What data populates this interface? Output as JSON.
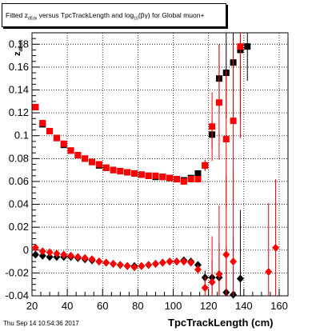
{
  "header": {
    "title_pre": "Fitted  z",
    "title_sub": "dEdx",
    "title_mid": " versus TpcTrackLength and log",
    "title_sub2": "10",
    "title_post": "(βγ) for Global muon+"
  },
  "footer": {
    "timestamp": "Thu Sep 14 10:54:36 2017"
  },
  "chart_data": {
    "type": "scatter",
    "xlabel": "TpcTrackLength (cm)",
    "ylabel_main": "z",
    "ylabel_sub": "dEdx",
    "xlim": [
      20,
      165
    ],
    "ylim": [
      -0.04,
      0.19
    ],
    "xticks": [
      20,
      40,
      60,
      80,
      100,
      120,
      140,
      160
    ],
    "yticks": [
      -0.04,
      -0.02,
      0,
      0.02,
      0.04,
      0.06,
      0.08,
      0.1,
      0.12,
      0.14,
      0.16,
      0.18
    ],
    "ytick_labels": [
      "-0.04",
      "-0.02",
      "0",
      "0.02",
      "0.04",
      "0.06",
      "0.08",
      "0.1",
      "0.12",
      "0.14",
      "0.16",
      "0.18"
    ],
    "grid": true,
    "colors": {
      "series1": "#000000",
      "series2": "#ff0000"
    },
    "series": [
      {
        "marker": "square",
        "color": "#000000",
        "x": [
          22,
          26,
          30,
          34,
          38,
          42,
          46,
          50,
          54,
          58,
          62,
          66,
          70,
          74,
          78,
          82,
          86,
          90,
          94,
          98,
          102,
          106,
          110,
          114,
          118,
          122,
          126,
          130,
          134,
          138,
          142
        ],
        "y": [
          0.125,
          0.11,
          0.104,
          0.098,
          0.092,
          0.087,
          0.083,
          0.08,
          0.077,
          0.074,
          0.072,
          0.07,
          0.069,
          0.068,
          0.067,
          0.066,
          0.065,
          0.064,
          0.064,
          0.063,
          0.062,
          0.061,
          0.063,
          0.067,
          0.074,
          0.101,
          0.15,
          0.155,
          0.164,
          0.175,
          0.178
        ],
        "yerr": [
          0.002,
          0.001,
          0.001,
          0.001,
          0.001,
          0.001,
          0.001,
          0.001,
          0.001,
          0.001,
          0.001,
          0.001,
          0.001,
          0.001,
          0.001,
          0.001,
          0.001,
          0.001,
          0.001,
          0.001,
          0.001,
          0.001,
          0.001,
          0.002,
          0.004,
          0.012,
          0.03,
          0.04,
          0.05,
          0.06,
          0.03
        ]
      },
      {
        "marker": "square",
        "color": "#ff0000",
        "x": [
          22,
          26,
          30,
          34,
          38,
          42,
          46,
          50,
          54,
          58,
          62,
          66,
          70,
          74,
          78,
          82,
          86,
          90,
          94,
          98,
          102,
          106,
          110,
          114,
          118,
          122,
          126,
          130,
          134,
          138
        ],
        "y": [
          0.125,
          0.111,
          0.104,
          0.098,
          0.093,
          0.087,
          0.083,
          0.08,
          0.077,
          0.075,
          0.072,
          0.07,
          0.069,
          0.068,
          0.067,
          0.066,
          0.065,
          0.065,
          0.064,
          0.063,
          0.062,
          0.06,
          0.062,
          0.062,
          0.074,
          0.108,
          0.129,
          0.097,
          0.113,
          0.178
        ],
        "yerr": [
          0.002,
          0.001,
          0.001,
          0.001,
          0.001,
          0.001,
          0.001,
          0.001,
          0.001,
          0.001,
          0.001,
          0.001,
          0.001,
          0.001,
          0.001,
          0.001,
          0.001,
          0.001,
          0.001,
          0.001,
          0.001,
          0.001,
          0.002,
          0.003,
          0.005,
          0.03,
          0.05,
          0.06,
          0.07,
          0.08
        ]
      },
      {
        "marker": "diamond",
        "color": "#000000",
        "x": [
          22,
          26,
          30,
          34,
          38,
          42,
          46,
          50,
          54,
          58,
          62,
          66,
          70,
          74,
          78,
          82,
          86,
          90,
          94,
          98,
          102,
          106,
          110,
          114,
          118,
          122,
          126,
          130,
          134,
          138
        ],
        "y": [
          -0.004,
          -0.005,
          -0.006,
          -0.006,
          -0.006,
          -0.006,
          -0.007,
          -0.008,
          -0.009,
          -0.01,
          -0.011,
          -0.012,
          -0.013,
          -0.014,
          -0.014,
          -0.014,
          -0.013,
          -0.012,
          -0.011,
          -0.01,
          -0.01,
          -0.009,
          -0.01,
          -0.013,
          -0.024,
          -0.024,
          -0.024,
          -0.037,
          -0.039,
          -0.025
        ],
        "yerr": [
          0.001,
          0.001,
          0.001,
          0.001,
          0.001,
          0.001,
          0.001,
          0.001,
          0.001,
          0.001,
          0.001,
          0.001,
          0.001,
          0.001,
          0.001,
          0.001,
          0.001,
          0.001,
          0.001,
          0.001,
          0.001,
          0.001,
          0.002,
          0.003,
          0.006,
          0.015,
          0.03,
          0.04,
          0.05,
          0.06
        ]
      },
      {
        "marker": "diamond",
        "color": "#ff0000",
        "x": [
          22,
          26,
          30,
          34,
          38,
          42,
          46,
          50,
          54,
          58,
          62,
          66,
          70,
          74,
          78,
          82,
          86,
          90,
          94,
          98,
          102,
          106,
          110,
          114,
          118,
          122,
          126,
          130,
          134,
          154,
          158
        ],
        "y": [
          0.002,
          -0.001,
          -0.002,
          -0.003,
          -0.004,
          -0.005,
          -0.006,
          -0.007,
          -0.008,
          -0.01,
          -0.011,
          -0.012,
          -0.013,
          -0.014,
          -0.015,
          -0.014,
          -0.013,
          -0.012,
          -0.011,
          -0.01,
          -0.01,
          -0.01,
          -0.011,
          -0.017,
          -0.033,
          -0.028,
          -0.021,
          -0.004,
          -0.01,
          -0.019,
          0.002
        ],
        "yerr": [
          0.001,
          0.001,
          0.001,
          0.001,
          0.001,
          0.001,
          0.001,
          0.001,
          0.001,
          0.001,
          0.001,
          0.001,
          0.001,
          0.001,
          0.001,
          0.001,
          0.001,
          0.001,
          0.001,
          0.001,
          0.001,
          0.001,
          0.002,
          0.004,
          0.01,
          0.04,
          0.06,
          0.07,
          0.08,
          0.06,
          0.06
        ]
      }
    ]
  }
}
